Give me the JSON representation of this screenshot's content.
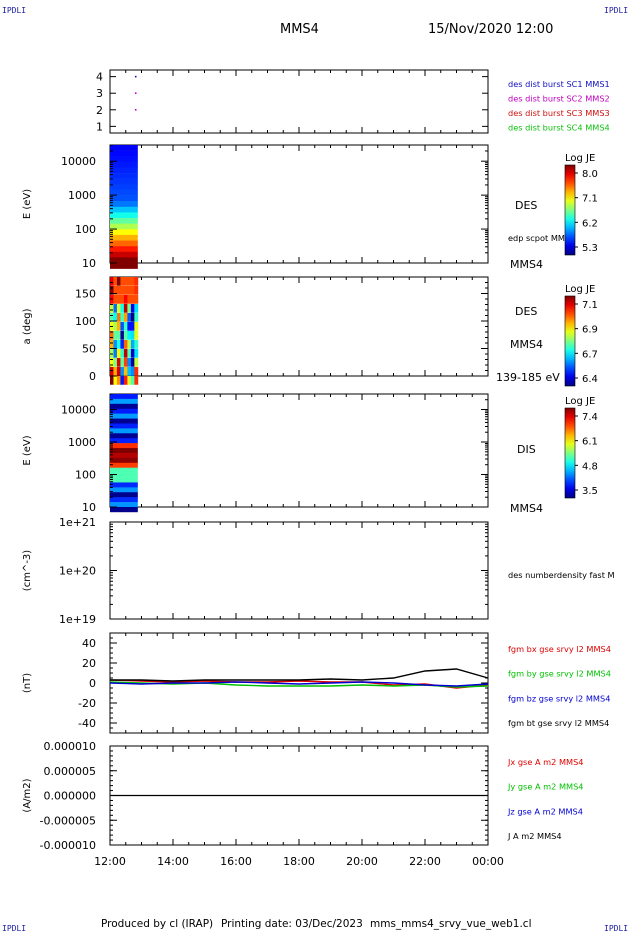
{
  "corner_mark": "IPDLI",
  "title": "MMS4",
  "datetime": "15/Nov/2020 12:00",
  "footer": {
    "producer": "Produced by cl (IRAP)",
    "printing": "Printing date: 03/Dec/2023",
    "filename": "mms_mms4_srvy_vue_web1.cl"
  },
  "chart_data": [
    {
      "type": "scatter",
      "ylim": [
        0.6,
        4.4
      ],
      "yticks": [
        "1",
        "2",
        "3",
        "4"
      ],
      "legend": [
        {
          "label": "des dist burst SC1 MMS1",
          "color": "#1010c0"
        },
        {
          "label": "des dist burst SC2 MMS2",
          "color": "#c000c0"
        },
        {
          "label": "des dist burst SC3 MMS3",
          "color": "#d01010"
        },
        {
          "label": "des dist burst SC4 MMS4",
          "color": "#10c010"
        }
      ],
      "points": [
        {
          "x": "12:49",
          "y": 4,
          "color": "#1010c0"
        },
        {
          "x": "12:49",
          "y": 3,
          "color": "#c000c0"
        },
        {
          "x": "12:49",
          "y": 2,
          "color": "#c000c0"
        }
      ]
    },
    {
      "type": "heatmap",
      "ylabel": "E (eV)",
      "yscale": "log",
      "ylim": [
        10,
        30000
      ],
      "yticks": [
        "10",
        "100",
        "1000",
        "10000"
      ],
      "side_labels": [
        "DES",
        "edp scpot MMS4",
        "MMS4"
      ],
      "colorbar": {
        "title": "Log JE",
        "ticks": [
          "8.0",
          "7.1",
          "6.2",
          "5.3"
        ]
      },
      "data_span": [
        "12:00",
        "12:53"
      ]
    },
    {
      "type": "heatmap",
      "ylabel": "a (deg)",
      "ylim": [
        0,
        180
      ],
      "yticks": [
        "0",
        "50",
        "100",
        "150"
      ],
      "side_labels": [
        "DES",
        "MMS4",
        "139-185 eV"
      ],
      "colorbar": {
        "title": "Log JE",
        "ticks": [
          "7.1",
          "6.9",
          "6.7",
          "6.4"
        ]
      },
      "data_span": [
        "12:00",
        "12:53"
      ]
    },
    {
      "type": "heatmap",
      "ylabel": "E (eV)",
      "yscale": "log",
      "ylim": [
        10,
        30000
      ],
      "yticks": [
        "10",
        "100",
        "1000",
        "10000"
      ],
      "side_labels": [
        "DIS",
        "MMS4"
      ],
      "colorbar": {
        "title": "Log JE",
        "ticks": [
          "7.4",
          "6.1",
          "4.8",
          "3.5"
        ]
      },
      "data_span": [
        "12:00",
        "12:53"
      ]
    },
    {
      "type": "line",
      "ylabel": "(cm^-3)",
      "yscale": "log",
      "ylim": [
        "1e+19",
        "1e+21"
      ],
      "yticks": [
        "1e+19",
        "1e+20",
        "1e+21"
      ],
      "legend": [
        {
          "label": "des numberdensity fast M",
          "color": "#000000"
        }
      ]
    },
    {
      "type": "line",
      "ylabel": "(nT)",
      "ylim": [
        -50,
        50
      ],
      "yticks": [
        "40",
        "20",
        "0",
        "-20",
        "-40"
      ],
      "legend": [
        {
          "label": "fgm bx gse srvy l2 MMS4",
          "color": "#e00000"
        },
        {
          "label": "fgm by gse srvy l2 MMS4",
          "color": "#00c000"
        },
        {
          "label": "fgm bz gse srvy l2 MMS4",
          "color": "#0000d0"
        },
        {
          "label": "fgm bt gse srvy l2 MMS4",
          "color": "#000000"
        }
      ],
      "series": [
        {
          "name": "fgm bx gse srvy l2 MMS4",
          "color": "#e00000",
          "x": [
            0,
            1,
            2,
            3,
            4,
            5,
            6,
            7,
            8,
            9,
            10,
            11,
            12
          ],
          "y": [
            3,
            2,
            1,
            2,
            1,
            1,
            2,
            1,
            1,
            -2,
            -1,
            -5,
            -2
          ]
        },
        {
          "name": "fgm by gse srvy l2 MMS4",
          "color": "#00c000",
          "x": [
            0,
            1,
            2,
            3,
            4,
            5,
            6,
            7,
            8,
            9,
            10,
            11,
            12
          ],
          "y": [
            1,
            0,
            -1,
            0,
            -2,
            -3,
            -3,
            -3,
            -2,
            -3,
            -2,
            -4,
            -3
          ]
        },
        {
          "name": "fgm bz gse srvy l2 MMS4",
          "color": "#0000d0",
          "x": [
            0,
            1,
            2,
            3,
            4,
            5,
            6,
            7,
            8,
            9,
            10,
            11,
            12
          ],
          "y": [
            0,
            -1,
            0,
            0,
            1,
            0,
            -1,
            0,
            1,
            0,
            -2,
            -3,
            -1
          ]
        },
        {
          "name": "fgm bt gse srvy l2 MMS4",
          "color": "#000000",
          "x": [
            0,
            1,
            2,
            3,
            4,
            5,
            6,
            7,
            8,
            9,
            10,
            11,
            12
          ],
          "y": [
            3,
            3,
            2,
            3,
            3,
            3,
            3,
            4,
            3,
            5,
            12,
            14,
            5
          ]
        }
      ]
    },
    {
      "type": "line",
      "ylabel": "(A/m2)",
      "ylim": [
        -1e-05,
        1e-05
      ],
      "yticks": [
        "0.000010",
        "0.000005",
        "0.000000",
        "-0.000005",
        "-0.000010"
      ],
      "legend": [
        {
          "label": "Jx gse A m2 MMS4",
          "color": "#e00000"
        },
        {
          "label": "Jy gse A m2 MMS4",
          "color": "#00c000"
        },
        {
          "label": "Jz gse A m2 MMS4",
          "color": "#0000d0"
        },
        {
          "label": "J A m2 MMS4",
          "color": "#000000"
        }
      ],
      "series": [
        {
          "name": "J A m2 MMS4",
          "color": "#000000",
          "x": [
            0,
            12
          ],
          "y": [
            0,
            0
          ]
        }
      ]
    }
  ],
  "x_axis": {
    "ticks": [
      "12:00",
      "14:00",
      "16:00",
      "18:00",
      "20:00",
      "22:00",
      "00:00"
    ],
    "xlim_hours": [
      0,
      12
    ]
  }
}
